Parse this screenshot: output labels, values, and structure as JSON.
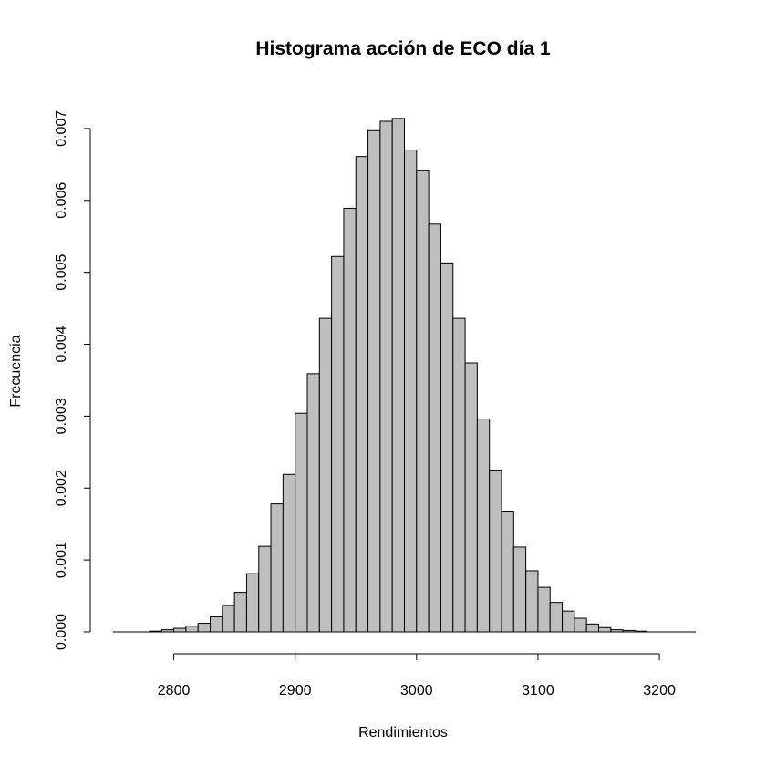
{
  "chart_data": {
    "type": "bar",
    "title": "Histograma acción de ECO día 1",
    "xlabel": "Rendimientos",
    "ylabel": "Frecuencia",
    "bar_fill": "#bebebe",
    "bar_stroke": "#000000",
    "xlim": [
      2750,
      3230
    ],
    "ylim": [
      0,
      0.0071
    ],
    "x_ticks": [
      2800,
      2900,
      3000,
      3100,
      3200
    ],
    "x_tick_labels": [
      "2800",
      "2900",
      "3000",
      "3100",
      "3200"
    ],
    "y_ticks": [
      0,
      0.001,
      0.002,
      0.003,
      0.004,
      0.005,
      0.006,
      0.007
    ],
    "y_tick_labels": [
      "0.000",
      "0.001",
      "0.002",
      "0.003",
      "0.004",
      "0.005",
      "0.006",
      "0.007"
    ],
    "bin_width": 10,
    "bin_start": 2780,
    "values": [
      1e-05,
      3e-05,
      5e-05,
      8e-05,
      0.00012,
      0.00021,
      0.00037,
      0.00055,
      0.00081,
      0.00119,
      0.00178,
      0.00219,
      0.00304,
      0.00359,
      0.00436,
      0.00522,
      0.00589,
      0.00661,
      0.00697,
      0.0071,
      0.00714,
      0.0067,
      0.00642,
      0.00567,
      0.00513,
      0.00436,
      0.00374,
      0.00296,
      0.00225,
      0.00168,
      0.00118,
      0.00085,
      0.00062,
      0.00041,
      0.00029,
      0.00019,
      0.00011,
      6e-05,
      3e-05,
      2e-05,
      1e-05
    ]
  }
}
